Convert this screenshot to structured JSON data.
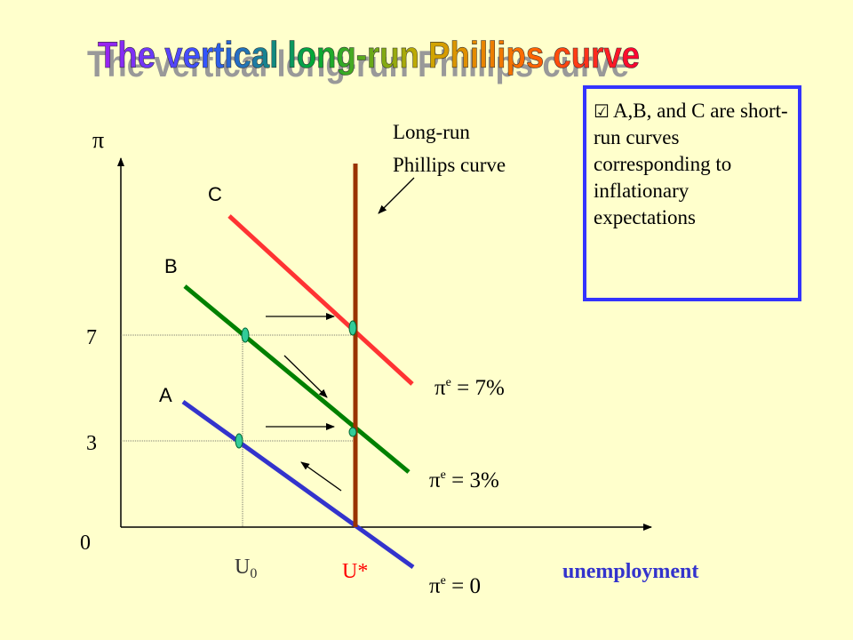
{
  "title": "The vertical long-run Phillips curve",
  "note": {
    "checkbox_glyph": "☑",
    "text": "A,B, and C are short-run curves corresponding to inflationary expectations"
  },
  "axes": {
    "y_symbol": "π",
    "x_label": "unemployment",
    "origin": "0",
    "y_tick_7": "7",
    "y_tick_3": "3",
    "x_tick_u0": "U",
    "x_tick_u0_sub": "0",
    "x_tick_ustar": "U*"
  },
  "lrpc_label": [
    "Long-run",
    "Phillips curve"
  ],
  "curves": {
    "a": {
      "letter": "A",
      "pi": "π",
      "sup": "e",
      "rest": " = 0"
    },
    "b": {
      "letter": "B",
      "pi": "π",
      "sup": "e",
      "rest": " = 3%"
    },
    "c": {
      "letter": "C",
      "pi": "π",
      "sup": "e",
      "rest": " = 7%"
    }
  },
  "colors": {
    "background": "#ffffcc",
    "curve_a": "#3333cc",
    "curve_b": "#008000",
    "curve_c": "#ff3333",
    "lrpc": "#993300",
    "points": "#33cc99",
    "ustar": "#ff0000",
    "x_label": "#3333cc",
    "note_border": "#3333ff"
  }
}
